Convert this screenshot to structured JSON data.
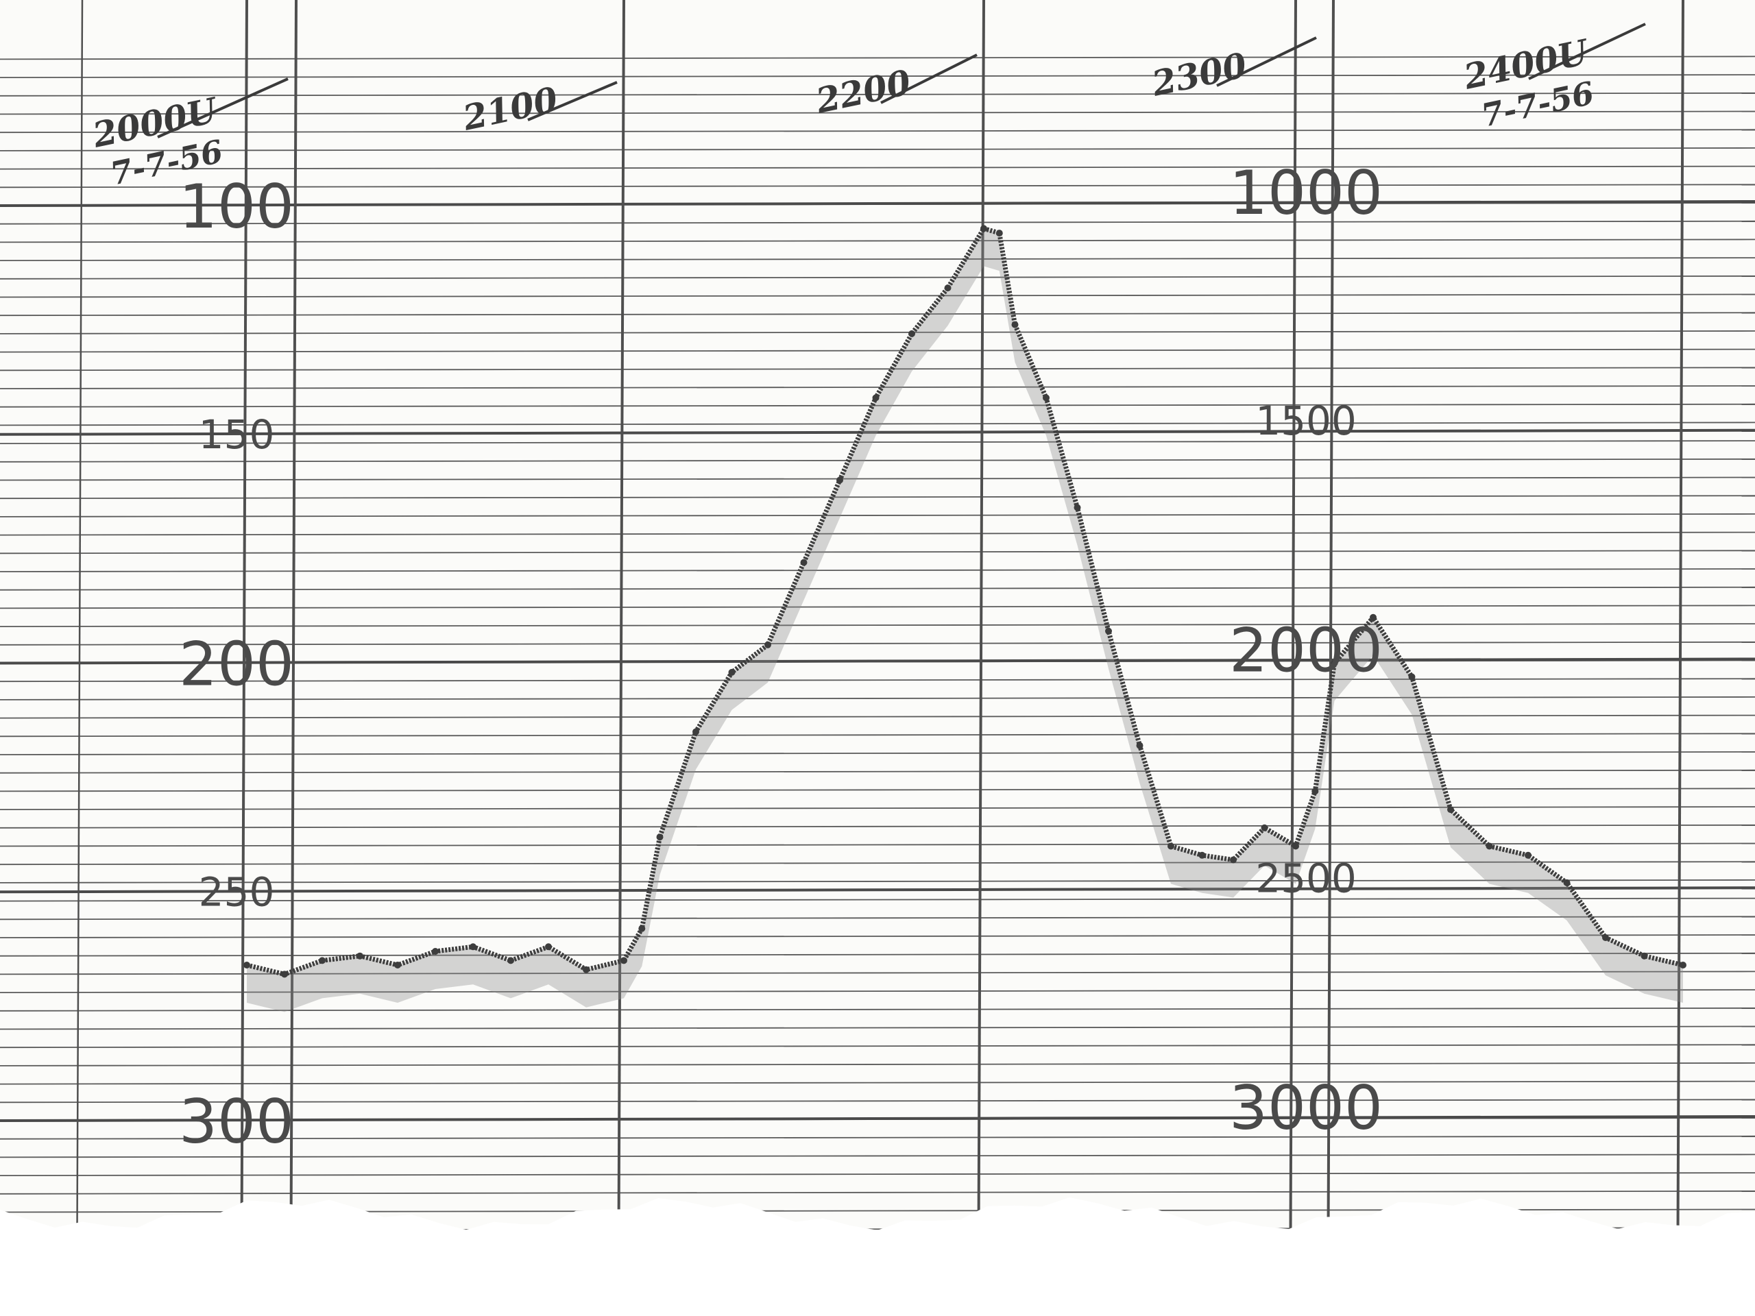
{
  "chart_data": {
    "type": "area",
    "title": "",
    "xlabel": "",
    "ylabel": "",
    "x_annotations": [
      {
        "time": "2000",
        "label": "2000U",
        "date": "7-7-56"
      },
      {
        "time": "2100",
        "label": "2100"
      },
      {
        "time": "2200",
        "label": "2200"
      },
      {
        "time": "2300",
        "label": "2300"
      },
      {
        "time": "2400",
        "label": "2400U",
        "date": "7-7-56"
      }
    ],
    "y_scales": [
      {
        "position": "left",
        "ticks": [
          "100",
          "150",
          "200",
          "250",
          "300"
        ],
        "values": [
          100,
          150,
          200,
          250,
          300
        ]
      },
      {
        "position": "right",
        "ticks": [
          "1000",
          "1500",
          "2000",
          "2500",
          "3000"
        ],
        "values": [
          1000,
          1500,
          2000,
          2500,
          3000
        ]
      }
    ],
    "ylim_left": [
      300,
      100
    ],
    "ylim_right": [
      3000,
      1000
    ],
    "y_inverted": true,
    "grid": true,
    "series": [
      {
        "x_time": [
          "2000",
          "2010",
          "2020",
          "2030",
          "2040",
          "2050",
          "2060",
          "2070",
          "2080",
          "2090",
          "2100",
          "2105",
          "2110",
          "2120",
          "2130",
          "2140",
          "2150",
          "2160",
          "2170",
          "2180",
          "2190",
          "2200",
          "2205",
          "2210",
          "2220",
          "2230",
          "2240",
          "2250",
          "2260",
          "2270",
          "2280",
          "2290",
          "2300",
          "2305",
          "2310",
          "2320",
          "2330",
          "2340",
          "2350",
          "2360",
          "2370",
          "2380",
          "2390",
          "2400"
        ],
        "values_left": [
          266,
          268,
          265,
          264,
          266,
          263,
          262,
          265,
          262,
          267,
          265,
          258,
          238,
          215,
          202,
          196,
          178,
          160,
          142,
          128,
          118,
          105,
          106,
          126,
          142,
          166,
          193,
          218,
          240,
          242,
          243,
          236,
          240,
          228,
          200,
          190,
          203,
          232,
          240,
          242,
          248,
          260,
          264,
          266
        ]
      }
    ]
  }
}
